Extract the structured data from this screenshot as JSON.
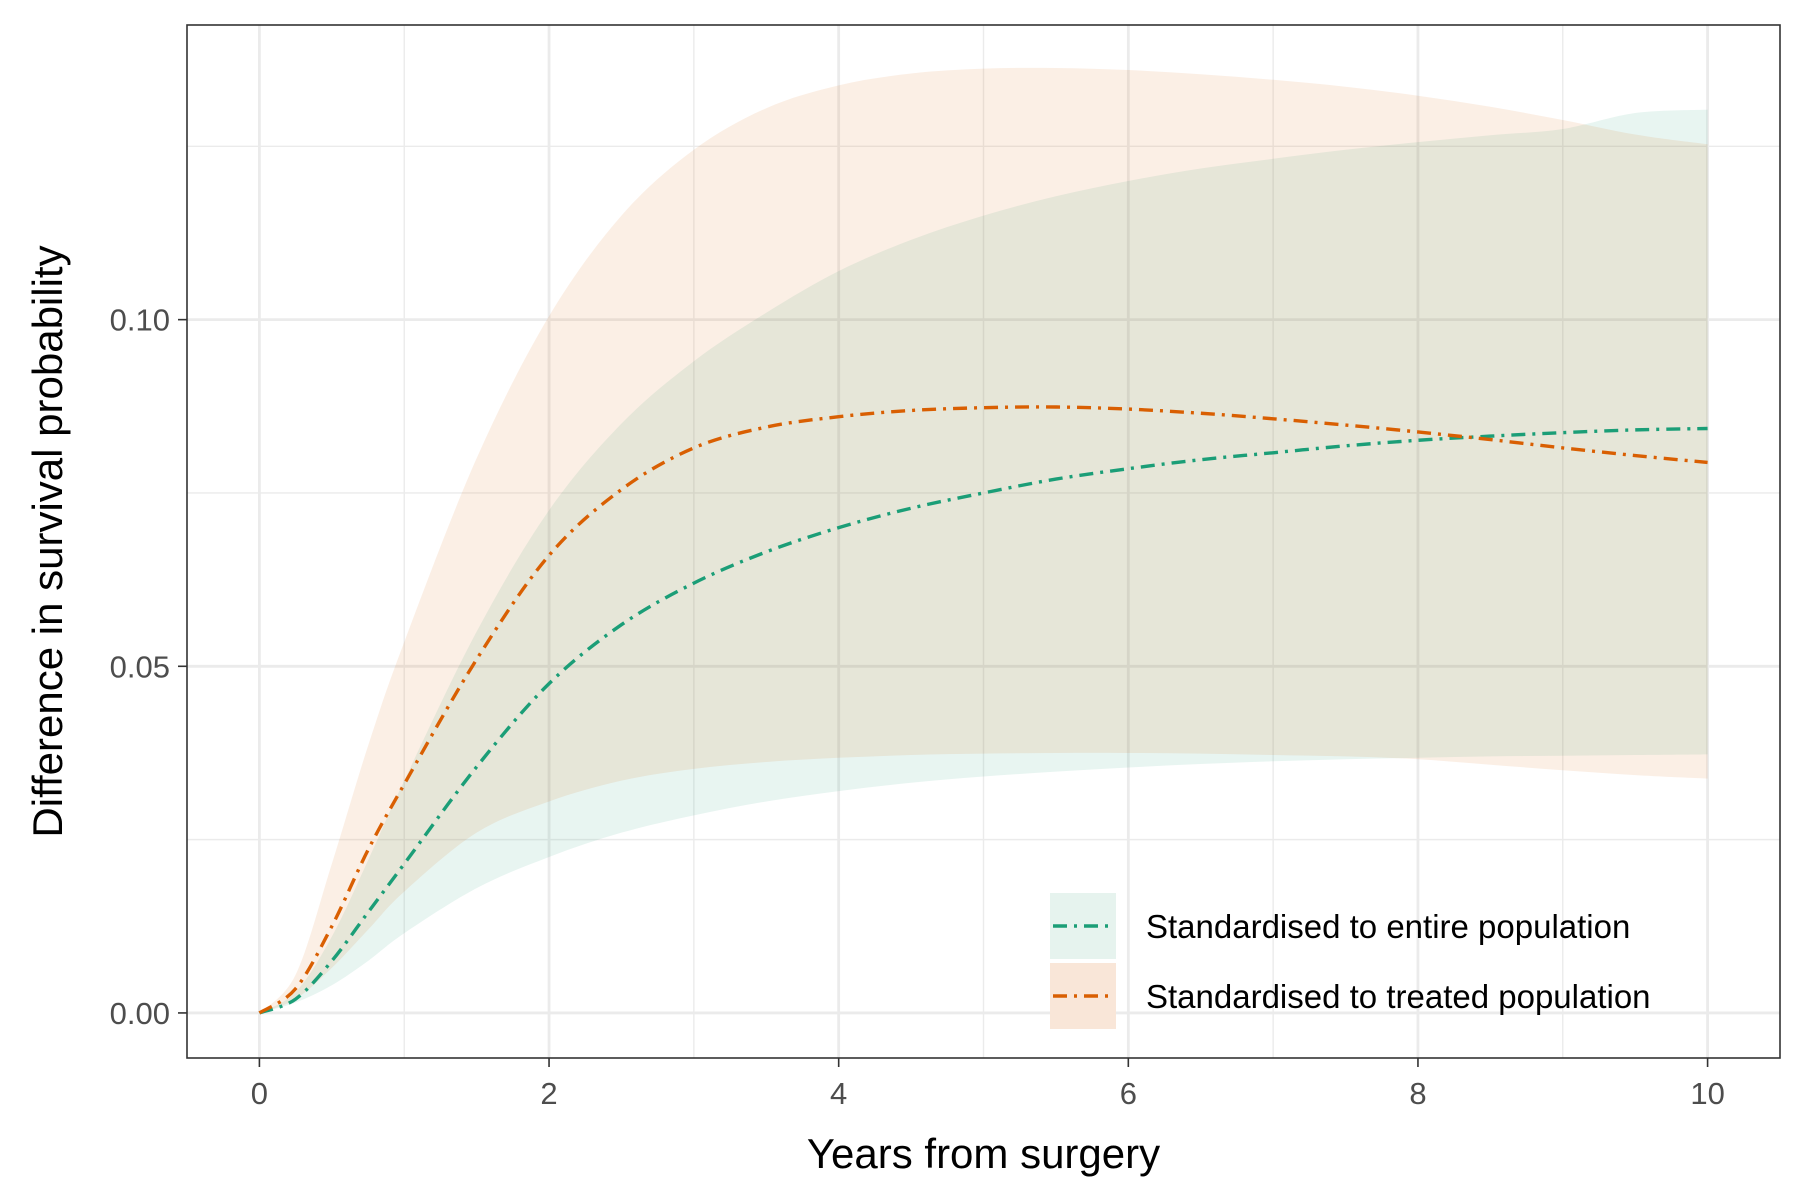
{
  "chart_data": {
    "type": "line",
    "xlabel": "Years from surgery",
    "ylabel": "Difference in survival probability",
    "xlim": [
      -0.5,
      10.5
    ],
    "ylim": [
      -0.0065,
      0.1425
    ],
    "x_ticks": [
      0,
      2,
      4,
      6,
      8,
      10
    ],
    "x_tick_labels": [
      "0",
      "2",
      "4",
      "6",
      "8",
      "10"
    ],
    "y_ticks": [
      0,
      0.05,
      0.1
    ],
    "y_tick_labels": [
      "0.00",
      "0.05",
      "0.10"
    ],
    "grid": true,
    "legend_position": "bottom-right",
    "x": [
      0,
      0.25,
      0.5,
      0.75,
      1,
      1.5,
      2,
      2.5,
      3,
      3.5,
      4,
      4.5,
      5,
      5.5,
      6,
      6.5,
      7,
      7.5,
      8,
      8.5,
      9,
      9.5,
      10
    ],
    "series": [
      {
        "name": "Standardised to entire population",
        "color": "#1b9e77",
        "linetype": "dashdot",
        "values": [
          0,
          0.002,
          0.0075,
          0.0145,
          0.0215,
          0.0355,
          0.0475,
          0.056,
          0.062,
          0.0665,
          0.07,
          0.0728,
          0.075,
          0.077,
          0.0785,
          0.0798,
          0.0808,
          0.0818,
          0.0826,
          0.0832,
          0.0837,
          0.0841,
          0.0843
        ],
        "lower": [
          0,
          0.0015,
          0.004,
          0.0075,
          0.0115,
          0.018,
          0.0225,
          0.026,
          0.0285,
          0.0305,
          0.032,
          0.0332,
          0.0341,
          0.0348,
          0.0354,
          0.0359,
          0.0363,
          0.0366,
          0.0368,
          0.037,
          0.0371,
          0.0372,
          0.0373
        ],
        "upper": [
          0,
          0.003,
          0.011,
          0.022,
          0.0335,
          0.055,
          0.0725,
          0.085,
          0.094,
          0.101,
          0.107,
          0.1115,
          0.115,
          0.1178,
          0.12,
          0.1218,
          0.1232,
          0.1245,
          0.1256,
          0.1266,
          0.1275,
          0.1298,
          0.1303
        ]
      },
      {
        "name": "Standardised to treated population",
        "color": "#d95f02",
        "linetype": "dashdot",
        "values": [
          0,
          0.0035,
          0.0125,
          0.0235,
          0.033,
          0.051,
          0.066,
          0.0755,
          0.0815,
          0.0845,
          0.086,
          0.0869,
          0.0873,
          0.0874,
          0.0871,
          0.0865,
          0.0857,
          0.0848,
          0.0838,
          0.0827,
          0.0815,
          0.0804,
          0.0794
        ],
        "lower": [
          0,
          0.002,
          0.0065,
          0.012,
          0.0175,
          0.026,
          0.0305,
          0.0335,
          0.0352,
          0.0362,
          0.0368,
          0.0372,
          0.0374,
          0.0375,
          0.0375,
          0.0374,
          0.0372,
          0.037,
          0.0366,
          0.0358,
          0.035,
          0.0343,
          0.0338
        ],
        "upper": [
          0,
          0.0055,
          0.0215,
          0.0385,
          0.0535,
          0.08,
          0.1005,
          0.115,
          0.1245,
          0.1305,
          0.1338,
          0.1355,
          0.1362,
          0.1363,
          0.136,
          0.1354,
          0.1346,
          0.1336,
          0.1323,
          0.1307,
          0.1288,
          0.1267,
          0.1253
        ]
      }
    ]
  }
}
